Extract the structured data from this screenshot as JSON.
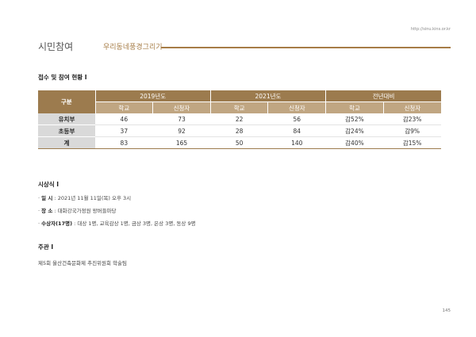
{
  "url": "http://sinu.kins.or.kr",
  "header": {
    "title": "시민참여",
    "subtitle": "우리동네풍경그리기"
  },
  "reception": {
    "heading": "접수 및 참여 현황 I",
    "category_label": "구분",
    "groups": [
      "2019년도",
      "2021년도",
      "전년대비"
    ],
    "subheaders": [
      "학교",
      "신청자",
      "학교",
      "신청자",
      "학교",
      "신청자"
    ],
    "rows": [
      {
        "label": "유치부",
        "values": [
          "46",
          "73",
          "22",
          "56",
          "감52%",
          "감23%"
        ]
      },
      {
        "label": "초등부",
        "values": [
          "37",
          "92",
          "28",
          "84",
          "감24%",
          "감9%"
        ]
      },
      {
        "label": "계",
        "values": [
          "83",
          "165",
          "50",
          "140",
          "감40%",
          "감15%"
        ]
      }
    ]
  },
  "ceremony": {
    "heading": "시상식 I",
    "items": [
      {
        "key": "일 시",
        "value": "2021년 11월 11일(목) 오후 3시"
      },
      {
        "key": "장 소",
        "value": "대화강국가정원 왕버들마당"
      },
      {
        "key": "수상자(17명)",
        "value": "대상 1명, 교육감상 1명, 금상 3명, 은상 3명, 동상 9명"
      }
    ]
  },
  "organizer": {
    "heading": "주관 I",
    "text": "제5회 울산건축문화제 추진위원회 학술팀"
  },
  "page_number": "145",
  "colors": {
    "accent": "#a67c46",
    "table_header": "#9c7b4e",
    "table_subheader": "#c0a682",
    "row_label_bg": "#d9d9d9"
  }
}
